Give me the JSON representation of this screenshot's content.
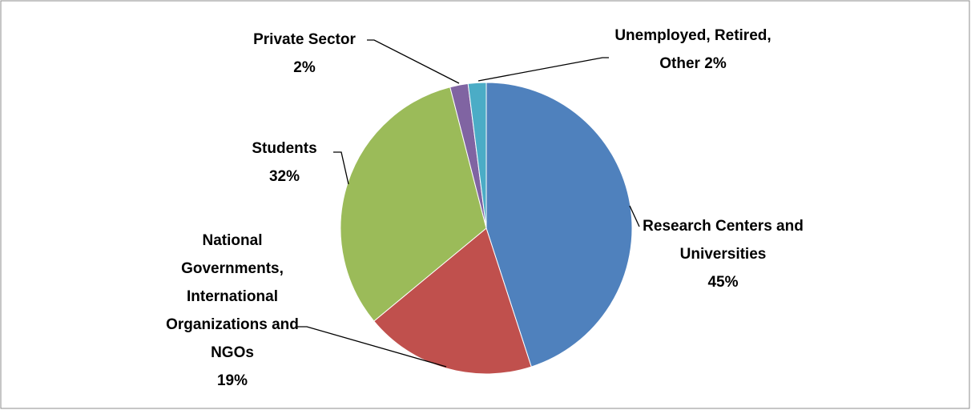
{
  "chart_data": {
    "type": "pie",
    "categories": [
      "Research Centers and Universities",
      "National Governments, International Organizations and NGOs",
      "Students",
      "Private Sector",
      "Unemployed, Retired, Other"
    ],
    "values": [
      45,
      19,
      32,
      2,
      2
    ],
    "value_labels": [
      "45%",
      "19%",
      "32%",
      "2%",
      "2%"
    ],
    "colors": [
      "#4f81bd",
      "#c0504d",
      "#9bbb59",
      "#8064a2",
      "#4bacc6"
    ]
  }
}
